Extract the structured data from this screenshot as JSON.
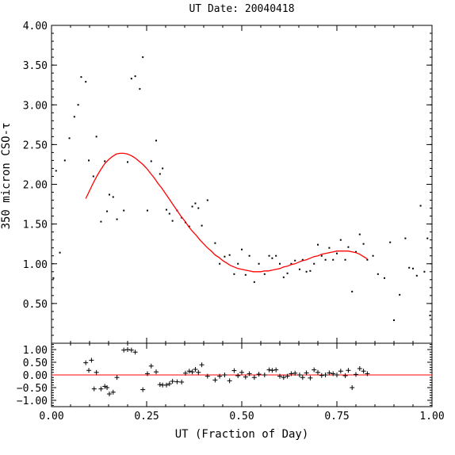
{
  "chart_data": [
    {
      "type": "scatter",
      "title": "UT Date: 20040418",
      "ylabel": "350 micron CSO-τ",
      "xlabel": "",
      "xlim": [
        0.0,
        1.0
      ],
      "ylim": [
        0.0,
        4.0
      ],
      "yticks": [
        0.5,
        1.0,
        1.5,
        2.0,
        2.5,
        3.0,
        3.5,
        4.0
      ],
      "ytick_labels": [
        "0.50",
        "1.00",
        "1.50",
        "2.00",
        "2.50",
        "3.00",
        "3.50",
        "4.00"
      ],
      "series": [
        {
          "marker": "dot",
          "color": "#000000",
          "x": [
            0.005,
            0.012,
            0.022,
            0.035,
            0.047,
            0.06,
            0.07,
            0.078,
            0.09,
            0.098,
            0.11,
            0.118,
            0.13,
            0.14,
            0.146,
            0.152,
            0.162,
            0.172,
            0.19,
            0.2,
            0.21,
            0.22,
            0.232,
            0.24,
            0.252,
            0.262,
            0.275,
            0.285,
            0.292,
            0.302,
            0.31,
            0.318,
            0.33,
            0.342,
            0.352,
            0.362,
            0.37,
            0.378,
            0.386,
            0.395,
            0.41,
            0.43,
            0.442,
            0.455,
            0.468,
            0.48,
            0.49,
            0.5,
            0.51,
            0.52,
            0.533,
            0.545,
            0.56,
            0.572,
            0.58,
            0.59,
            0.6,
            0.61,
            0.62,
            0.63,
            0.64,
            0.652,
            0.66,
            0.67,
            0.68,
            0.69,
            0.7,
            0.71,
            0.72,
            0.73,
            0.74,
            0.75,
            0.76,
            0.772,
            0.78,
            0.79,
            0.8,
            0.81,
            0.82,
            0.83,
            0.845,
            0.858,
            0.875,
            0.89,
            0.9,
            0.915,
            0.93,
            0.94,
            0.95,
            0.96,
            0.97,
            0.98,
            0.988,
            0.995
          ],
          "y": [
            0.82,
            2.17,
            1.14,
            2.3,
            2.58,
            2.85,
            3.0,
            3.35,
            3.29,
            2.3,
            2.1,
            2.6,
            1.53,
            2.29,
            1.66,
            1.87,
            1.84,
            1.56,
            1.67,
            2.28,
            3.33,
            3.36,
            3.2,
            3.6,
            1.67,
            2.29,
            2.55,
            2.13,
            2.2,
            1.68,
            1.63,
            1.54,
            1.67,
            1.58,
            1.52,
            1.47,
            1.72,
            1.76,
            1.7,
            1.48,
            1.8,
            1.26,
            1.0,
            1.09,
            1.11,
            0.87,
            1.0,
            1.18,
            0.86,
            1.1,
            0.77,
            1.0,
            0.87,
            1.1,
            1.07,
            1.1,
            1.0,
            0.83,
            0.88,
            1.0,
            1.04,
            0.93,
            1.05,
            0.9,
            0.91,
            1.0,
            1.24,
            1.1,
            1.05,
            1.2,
            1.05,
            1.13,
            1.3,
            1.05,
            1.21,
            0.65,
            1.15,
            1.37,
            1.25,
            1.05,
            1.1,
            0.87,
            0.82,
            1.27,
            0.29,
            0.61,
            1.32,
            0.95,
            0.94,
            0.85,
            1.73,
            0.9,
            1.32,
            0.35
          ]
        },
        {
          "marker": "line",
          "color": "#ff0000",
          "x": [
            0.09,
            0.1,
            0.11,
            0.12,
            0.13,
            0.14,
            0.15,
            0.16,
            0.17,
            0.18,
            0.19,
            0.2,
            0.21,
            0.22,
            0.23,
            0.24,
            0.25,
            0.26,
            0.27,
            0.28,
            0.29,
            0.3,
            0.31,
            0.32,
            0.33,
            0.34,
            0.35,
            0.36,
            0.37,
            0.38,
            0.39,
            0.4,
            0.41,
            0.42,
            0.43,
            0.44,
            0.45,
            0.46,
            0.47,
            0.48,
            0.49,
            0.5,
            0.51,
            0.52,
            0.53,
            0.54,
            0.55,
            0.56,
            0.57,
            0.58,
            0.59,
            0.6,
            0.61,
            0.62,
            0.63,
            0.64,
            0.65,
            0.66,
            0.67,
            0.68,
            0.69,
            0.7,
            0.71,
            0.72,
            0.73,
            0.74,
            0.75,
            0.76,
            0.77,
            0.78,
            0.79,
            0.8,
            0.81,
            0.82,
            0.83
          ],
          "y": [
            1.82,
            1.92,
            2.02,
            2.11,
            2.19,
            2.26,
            2.31,
            2.35,
            2.38,
            2.39,
            2.39,
            2.38,
            2.36,
            2.33,
            2.29,
            2.25,
            2.2,
            2.14,
            2.08,
            2.01,
            1.95,
            1.88,
            1.81,
            1.74,
            1.67,
            1.6,
            1.54,
            1.47,
            1.41,
            1.36,
            1.3,
            1.25,
            1.2,
            1.16,
            1.11,
            1.08,
            1.04,
            1.01,
            0.98,
            0.96,
            0.94,
            0.93,
            0.92,
            0.91,
            0.9,
            0.9,
            0.9,
            0.91,
            0.91,
            0.92,
            0.93,
            0.94,
            0.96,
            0.97,
            0.99,
            1.0,
            1.02,
            1.04,
            1.05,
            1.07,
            1.09,
            1.1,
            1.12,
            1.13,
            1.14,
            1.15,
            1.16,
            1.16,
            1.16,
            1.16,
            1.15,
            1.14,
            1.12,
            1.09,
            1.06
          ]
        }
      ]
    },
    {
      "type": "scatter",
      "xlabel": "UT (Fraction of Day)",
      "ylabel": "",
      "xlim": [
        0.0,
        1.0
      ],
      "ylim": [
        -1.25,
        1.25
      ],
      "xticks": [
        0.0,
        0.25,
        0.5,
        0.75,
        1.0
      ],
      "xtick_labels": [
        "0.00",
        "0.25",
        "0.50",
        "0.75",
        "1.00"
      ],
      "yticks": [
        -1.0,
        -0.5,
        0.0,
        0.5,
        1.0
      ],
      "ytick_labels": [
        "−1.00",
        "−0.50",
        "0.00",
        "0.50",
        "1.00"
      ],
      "reference_line": {
        "y": 0.0,
        "color": "#ff0000"
      },
      "series": [
        {
          "marker": "plus",
          "color": "#000000",
          "x": [
            0.09,
            0.098,
            0.105,
            0.112,
            0.118,
            0.13,
            0.14,
            0.146,
            0.152,
            0.162,
            0.172,
            0.19,
            0.2,
            0.21,
            0.22,
            0.24,
            0.252,
            0.262,
            0.275,
            0.285,
            0.292,
            0.302,
            0.31,
            0.318,
            0.33,
            0.342,
            0.352,
            0.362,
            0.37,
            0.378,
            0.386,
            0.395,
            0.41,
            0.43,
            0.442,
            0.455,
            0.468,
            0.48,
            0.49,
            0.5,
            0.51,
            0.52,
            0.533,
            0.545,
            0.56,
            0.572,
            0.58,
            0.59,
            0.6,
            0.61,
            0.62,
            0.63,
            0.64,
            0.652,
            0.66,
            0.67,
            0.68,
            0.69,
            0.7,
            0.71,
            0.72,
            0.73,
            0.74,
            0.75,
            0.76,
            0.772,
            0.78,
            0.79,
            0.8,
            0.81,
            0.82,
            0.83
          ],
          "y": [
            0.48,
            0.18,
            0.58,
            -0.55,
            0.1,
            -0.55,
            -0.45,
            -0.5,
            -0.75,
            -0.68,
            -0.1,
            0.98,
            1.0,
            0.98,
            0.9,
            -0.58,
            0.05,
            0.35,
            0.12,
            -0.38,
            -0.4,
            -0.4,
            -0.35,
            -0.25,
            -0.27,
            -0.28,
            0.07,
            0.15,
            0.12,
            0.22,
            0.1,
            0.4,
            -0.05,
            -0.2,
            -0.05,
            0.0,
            -0.23,
            0.17,
            -0.03,
            0.1,
            -0.08,
            0.05,
            -0.1,
            0.03,
            0.0,
            0.2,
            0.18,
            0.2,
            -0.05,
            -0.1,
            -0.05,
            0.05,
            0.07,
            0.0,
            -0.1,
            0.08,
            -0.12,
            0.2,
            0.1,
            -0.02,
            0.0,
            0.08,
            0.05,
            0.0,
            0.15,
            -0.03,
            0.18,
            -0.5,
            0.02,
            0.25,
            0.15,
            0.05
          ]
        }
      ]
    }
  ]
}
